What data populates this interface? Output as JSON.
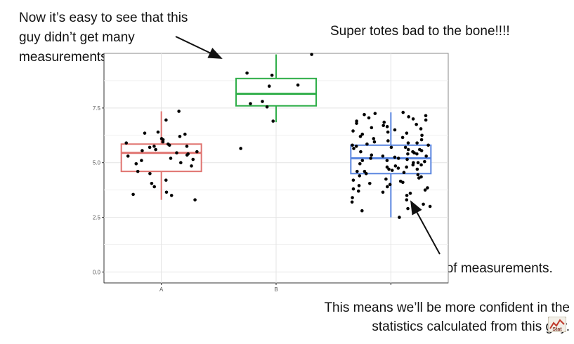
{
  "annotations": {
    "left": [
      "Now it’s easy to see that this",
      "guy didn’t get many",
      "measurements."
    ],
    "top": "Super totes bad to the bone!!!!",
    "right": "And this guy got tons of measurements.",
    "bottom": [
      "This means we’ll be more confident in the",
      "statistics calculated from this guy."
    ]
  },
  "logo": {
    "text": "Stat",
    "icon": "statquest-logo-icon"
  },
  "colors": {
    "A": "#e07470",
    "B": "#2fae49",
    "C": "#5a86e0",
    "points": "#000000",
    "grid": "#e4e4e4"
  },
  "chart_data": {
    "type": "boxplot",
    "categories": [
      "A",
      "B",
      ""
    ],
    "x_tick_labels": [
      "A",
      "B"
    ],
    "y_ticks": [
      0.0,
      2.5,
      5.0,
      7.5
    ],
    "y_tick_labels": [
      "0.0",
      "2.5",
      "5.0",
      "7.5"
    ],
    "ylim": [
      -0.5,
      10.0
    ],
    "grid": true,
    "series": [
      {
        "category": "A",
        "box": {
          "min": 3.3,
          "q1": 4.6,
          "median": 5.45,
          "q3": 5.85,
          "max": 7.35
        },
        "points": [
          7.35,
          6.95,
          6.4,
          6.35,
          6.3,
          6.2,
          6.1,
          6.05,
          5.95,
          5.9,
          5.85,
          5.8,
          5.75,
          5.75,
          5.7,
          5.6,
          5.55,
          5.5,
          5.45,
          5.4,
          5.35,
          5.3,
          5.2,
          5.15,
          5.1,
          5.0,
          4.95,
          4.85,
          4.6,
          4.5,
          4.2,
          4.05,
          3.9,
          3.65,
          3.55,
          3.5,
          3.3
        ]
      },
      {
        "category": "B",
        "box": {
          "min": 6.85,
          "q1": 7.6,
          "median": 8.15,
          "q3": 8.85,
          "max": 9.95
        },
        "points": [
          9.95,
          9.1,
          9.0,
          8.55,
          8.5,
          7.8,
          7.7,
          7.55,
          6.9,
          5.65
        ]
      },
      {
        "category": "",
        "box": {
          "min": 2.5,
          "q1": 4.5,
          "median": 5.2,
          "q3": 5.8,
          "max": 7.3
        },
        "points": [
          7.3,
          7.25,
          7.2,
          7.15,
          7.1,
          7.05,
          7.0,
          6.95,
          6.9,
          6.85,
          6.8,
          6.75,
          6.7,
          6.65,
          6.6,
          6.55,
          6.5,
          6.45,
          6.4,
          6.35,
          6.3,
          6.25,
          6.2,
          6.15,
          6.1,
          6.05,
          6.0,
          5.95,
          5.9,
          5.9,
          5.85,
          5.8,
          5.8,
          5.75,
          5.7,
          5.7,
          5.65,
          5.6,
          5.6,
          5.55,
          5.5,
          5.5,
          5.45,
          5.4,
          5.4,
          5.35,
          5.3,
          5.3,
          5.25,
          5.2,
          5.2,
          5.15,
          5.1,
          5.1,
          5.05,
          5.0,
          5.0,
          4.95,
          4.9,
          4.9,
          4.85,
          4.8,
          4.8,
          4.75,
          4.7,
          4.7,
          4.65,
          4.6,
          4.6,
          4.55,
          4.5,
          4.45,
          4.4,
          4.35,
          4.3,
          4.25,
          4.2,
          4.15,
          4.1,
          4.05,
          4.0,
          3.95,
          3.9,
          3.85,
          3.8,
          3.75,
          3.7,
          3.65,
          3.6,
          3.5,
          3.4,
          3.3,
          3.2,
          3.1,
          3.0,
          2.9,
          2.8,
          2.5
        ]
      }
    ]
  }
}
